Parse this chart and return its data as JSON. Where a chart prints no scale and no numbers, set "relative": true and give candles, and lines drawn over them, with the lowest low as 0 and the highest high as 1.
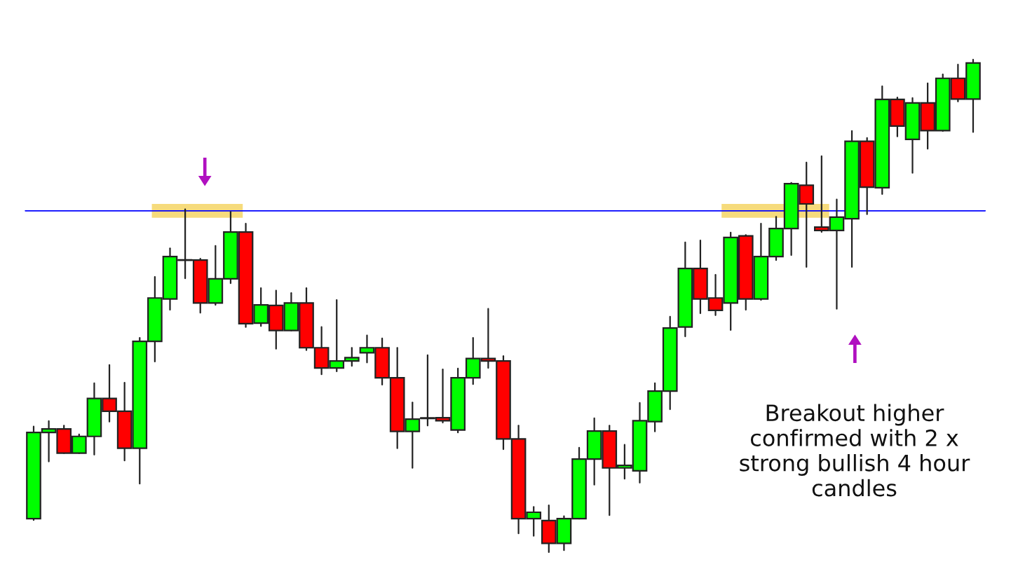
{
  "chart_data": {
    "type": "candlestick",
    "relative": true,
    "categories": [
      null,
      null,
      null,
      null,
      null,
      null,
      null,
      null,
      null,
      null,
      null,
      null,
      null,
      null,
      null,
      null,
      null,
      null,
      null,
      null,
      null,
      null,
      null,
      null,
      null,
      null,
      null,
      null,
      null,
      null,
      null,
      null,
      null,
      null,
      null,
      null,
      null,
      null,
      null,
      null,
      null,
      null,
      null,
      null,
      null,
      null,
      null,
      null,
      null,
      null,
      null,
      null,
      null,
      null,
      null,
      null,
      null,
      null,
      null,
      null,
      null,
      null,
      null
    ],
    "ohlc": [
      [
        0.068,
        0.255,
        0.065,
        0.243
      ],
      [
        0.243,
        0.266,
        0.184,
        0.25
      ],
      [
        0.25,
        0.257,
        0.201,
        0.201
      ],
      [
        0.201,
        0.239,
        0.201,
        0.235
      ],
      [
        0.235,
        0.343,
        0.198,
        0.312
      ],
      [
        0.312,
        0.38,
        0.265,
        0.286
      ],
      [
        0.286,
        0.344,
        0.186,
        0.211
      ],
      [
        0.211,
        0.435,
        0.139,
        0.428
      ],
      [
        0.428,
        0.559,
        0.387,
        0.516
      ],
      [
        0.514,
        0.617,
        0.492,
        0.6
      ],
      [
        0.593,
        0.696,
        0.556,
        0.593
      ],
      [
        0.593,
        0.596,
        0.486,
        0.506
      ],
      [
        0.506,
        0.622,
        0.502,
        0.555
      ],
      [
        0.555,
        0.691,
        0.546,
        0.65
      ],
      [
        0.65,
        0.667,
        0.457,
        0.464
      ],
      [
        0.465,
        0.536,
        0.459,
        0.502
      ],
      [
        0.501,
        0.531,
        0.413,
        0.45
      ],
      [
        0.45,
        0.526,
        0.45,
        0.506
      ],
      [
        0.506,
        0.536,
        0.41,
        0.415
      ],
      [
        0.415,
        0.457,
        0.361,
        0.374
      ],
      [
        0.374,
        0.512,
        0.367,
        0.388
      ],
      [
        0.388,
        0.415,
        0.378,
        0.395
      ],
      [
        0.405,
        0.44,
        0.385,
        0.415
      ],
      [
        0.415,
        0.434,
        0.34,
        0.354
      ],
      [
        0.354,
        0.415,
        0.211,
        0.245
      ],
      [
        0.245,
        0.304,
        0.171,
        0.27
      ],
      [
        0.272,
        0.4,
        0.257,
        0.272
      ],
      [
        0.273,
        0.371,
        0.263,
        0.267
      ],
      [
        0.248,
        0.373,
        0.243,
        0.354
      ],
      [
        0.354,
        0.435,
        0.341,
        0.393
      ],
      [
        0.393,
        0.494,
        0.374,
        0.388
      ],
      [
        0.388,
        0.398,
        0.209,
        0.23
      ],
      [
        0.23,
        0.257,
        0.038,
        0.068
      ],
      [
        0.068,
        0.092,
        0.033,
        0.081
      ],
      [
        0.064,
        0.095,
        0.0,
        0.018
      ],
      [
        0.018,
        0.073,
        0.004,
        0.068
      ],
      [
        0.068,
        0.212,
        0.068,
        0.189
      ],
      [
        0.189,
        0.272,
        0.137,
        0.246
      ],
      [
        0.246,
        0.257,
        0.075,
        0.171
      ],
      [
        0.171,
        0.218,
        0.149,
        0.176
      ],
      [
        0.165,
        0.303,
        0.141,
        0.267
      ],
      [
        0.265,
        0.343,
        0.245,
        0.327
      ],
      [
        0.327,
        0.478,
        0.29,
        0.455
      ],
      [
        0.457,
        0.629,
        0.438,
        0.576
      ],
      [
        0.576,
        0.633,
        0.485,
        0.514
      ],
      [
        0.516,
        0.563,
        0.481,
        0.491
      ],
      [
        0.506,
        0.649,
        0.451,
        0.639
      ],
      [
        0.642,
        0.644,
        0.492,
        0.514
      ],
      [
        0.514,
        0.667,
        0.512,
        0.6
      ],
      [
        0.6,
        0.681,
        0.593,
        0.657
      ],
      [
        0.657,
        0.75,
        0.603,
        0.748
      ],
      [
        0.745,
        0.791,
        0.579,
        0.707
      ],
      [
        0.66,
        0.804,
        0.65,
        0.653
      ],
      [
        0.653,
        0.716,
        0.494,
        0.68
      ],
      [
        0.677,
        0.855,
        0.579,
        0.834
      ],
      [
        0.834,
        0.841,
        0.686,
        0.741
      ],
      [
        0.74,
        0.946,
        0.727,
        0.919
      ],
      [
        0.919,
        0.923,
        0.844,
        0.865
      ],
      [
        0.838,
        0.922,
        0.77,
        0.912
      ],
      [
        0.912,
        0.952,
        0.819,
        0.856
      ],
      [
        0.856,
        0.97,
        0.855,
        0.962
      ],
      [
        0.962,
        0.99,
        0.915,
        0.92
      ],
      [
        0.92,
        1.0,
        0.853,
        0.993
      ]
    ],
    "colors": [
      "#00ff00",
      "#00ff00",
      "#ff0000",
      "#00ff00",
      "#00ff00",
      "#ff0000",
      "#ff0000",
      "#00ff00",
      "#00ff00",
      "#00ff00",
      "#222222",
      "#ff0000",
      "#00ff00",
      "#00ff00",
      "#ff0000",
      "#00ff00",
      "#ff0000",
      "#00ff00",
      "#ff0000",
      "#ff0000",
      "#00ff00",
      "#00ff00",
      "#00ff00",
      "#ff0000",
      "#ff0000",
      "#00ff00",
      "#222222",
      "#ff0000",
      "#00ff00",
      "#00ff00",
      "#ff0000",
      "#ff0000",
      "#ff0000",
      "#00ff00",
      "#ff0000",
      "#00ff00",
      "#00ff00",
      "#00ff00",
      "#ff0000",
      "#00ff00",
      "#00ff00",
      "#00ff00",
      "#00ff00",
      "#00ff00",
      "#ff0000",
      "#ff0000",
      "#00ff00",
      "#ff0000",
      "#00ff00",
      "#00ff00",
      "#00ff00",
      "#ff0000",
      "#ff0000",
      "#00ff00",
      "#00ff00",
      "#ff0000",
      "#00ff00",
      "#ff0000",
      "#00ff00",
      "#ff0000",
      "#00ff00",
      "#ff0000",
      "#00ff00"
    ],
    "ref_lines": [
      {
        "axis": "y",
        "value": 0.693,
        "color": "#0000ff",
        "line_style": "solid"
      }
    ],
    "annotations": [
      "Breakout higher\nconfirmed with 2 x\nstrong bullish 4 hour\ncandles"
    ]
  }
}
